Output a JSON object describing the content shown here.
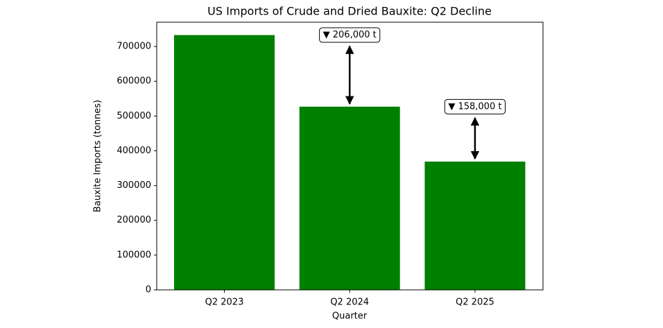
{
  "chart_data": {
    "type": "bar",
    "title": "US Imports of Crude and Dried Bauxite: Q2 Decline",
    "x_label": "Quarter",
    "y_label": "Bauxite Imports (tonnes)",
    "categories": [
      "Q2 2023",
      "Q2 2024",
      "Q2 2025"
    ],
    "values": [
      733000,
      527000,
      369000
    ],
    "color": "#008000",
    "annotations": [
      null,
      "▼ 206,000 t",
      "▼ 158,000 t"
    ],
    "ylim": [
      0,
      770000
    ],
    "yticks": [
      0,
      100000,
      200000,
      300000,
      400000,
      500000,
      600000,
      700000
    ],
    "grid": false
  }
}
